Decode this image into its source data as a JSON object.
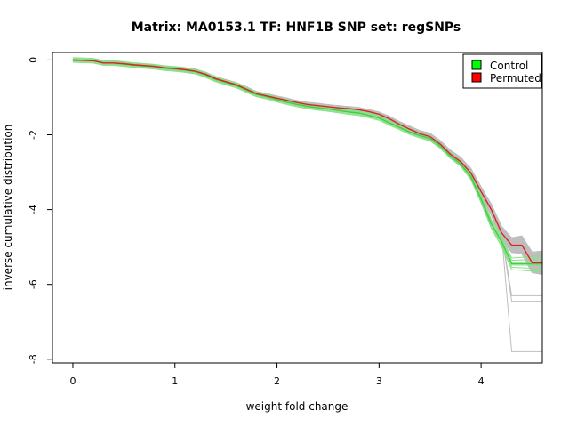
{
  "chart_data": {
    "type": "line",
    "title": "Matrix: MA0153.1 TF: HNF1B SNP set: regSNPs",
    "xlabel": "weight fold change",
    "ylabel": "inverse cumulative distribution",
    "xlim": [
      -0.2,
      4.6
    ],
    "ylim": [
      -8.1,
      0.2
    ],
    "x_ticks": [
      0,
      1,
      2,
      3,
      4
    ],
    "y_ticks": [
      0,
      -2,
      -4,
      -6,
      -8
    ],
    "x_tick_labels": [
      "0",
      "1",
      "2",
      "3",
      "4"
    ],
    "y_tick_labels": [
      "0",
      "-2",
      "-4",
      "-6",
      "-8"
    ],
    "grid": false,
    "legend_position": "top-right",
    "colors": {
      "control": "#00ff00",
      "permuted": "#ff0000",
      "permuted_line": "#dd2222",
      "permutation_lines": "#bebebe",
      "control_band": "#88e088"
    },
    "legend": [
      {
        "label": "Control",
        "color": "#00ff00"
      },
      {
        "label": "Permuted",
        "color": "#ff0000"
      }
    ],
    "series": [
      {
        "name": "Control",
        "color": "#44cc44",
        "x": [
          0,
          0.2,
          0.3,
          0.4,
          0.5,
          0.6,
          0.7,
          0.8,
          0.9,
          1.0,
          1.1,
          1.2,
          1.3,
          1.4,
          1.5,
          1.6,
          1.7,
          1.8,
          1.9,
          2.0,
          2.1,
          2.2,
          2.3,
          2.4,
          2.5,
          2.6,
          2.7,
          2.8,
          2.9,
          3.0,
          3.1,
          3.2,
          3.3,
          3.4,
          3.5,
          3.6,
          3.7,
          3.8,
          3.9,
          4.0,
          4.1,
          4.2,
          4.3,
          4.4,
          4.5,
          4.6
        ],
        "values": [
          0,
          -0.02,
          -0.08,
          -0.08,
          -0.11,
          -0.14,
          -0.16,
          -0.18,
          -0.22,
          -0.24,
          -0.27,
          -0.31,
          -0.4,
          -0.52,
          -0.6,
          -0.68,
          -0.8,
          -0.92,
          -0.98,
          -1.06,
          -1.13,
          -1.19,
          -1.24,
          -1.28,
          -1.31,
          -1.35,
          -1.39,
          -1.42,
          -1.48,
          -1.55,
          -1.68,
          -1.8,
          -1.93,
          -2.02,
          -2.1,
          -2.3,
          -2.57,
          -2.78,
          -3.12,
          -3.72,
          -4.38,
          -4.85,
          -5.45,
          -5.45,
          -5.45,
          -5.45
        ]
      },
      {
        "name": "Permuted",
        "color": "#dd2222",
        "x": [
          0,
          0.2,
          0.3,
          0.4,
          0.5,
          0.6,
          0.7,
          0.8,
          0.9,
          1.0,
          1.1,
          1.2,
          1.3,
          1.4,
          1.5,
          1.6,
          1.7,
          1.8,
          1.9,
          2.0,
          2.1,
          2.2,
          2.3,
          2.4,
          2.5,
          2.6,
          2.7,
          2.8,
          2.9,
          3.0,
          3.1,
          3.2,
          3.3,
          3.4,
          3.5,
          3.6,
          3.7,
          3.8,
          3.9,
          4.0,
          4.1,
          4.2,
          4.3,
          4.4,
          4.5,
          4.6
        ],
        "values": [
          0,
          -0.02,
          -0.08,
          -0.08,
          -0.1,
          -0.13,
          -0.15,
          -0.17,
          -0.21,
          -0.23,
          -0.26,
          -0.3,
          -0.38,
          -0.5,
          -0.58,
          -0.66,
          -0.78,
          -0.9,
          -0.96,
          -1.02,
          -1.08,
          -1.14,
          -1.19,
          -1.22,
          -1.25,
          -1.28,
          -1.3,
          -1.33,
          -1.38,
          -1.45,
          -1.57,
          -1.72,
          -1.85,
          -1.97,
          -2.05,
          -2.25,
          -2.52,
          -2.72,
          -3.02,
          -3.52,
          -4.0,
          -4.62,
          -4.95,
          -4.95,
          -5.42,
          -5.42
        ]
      }
    ]
  }
}
